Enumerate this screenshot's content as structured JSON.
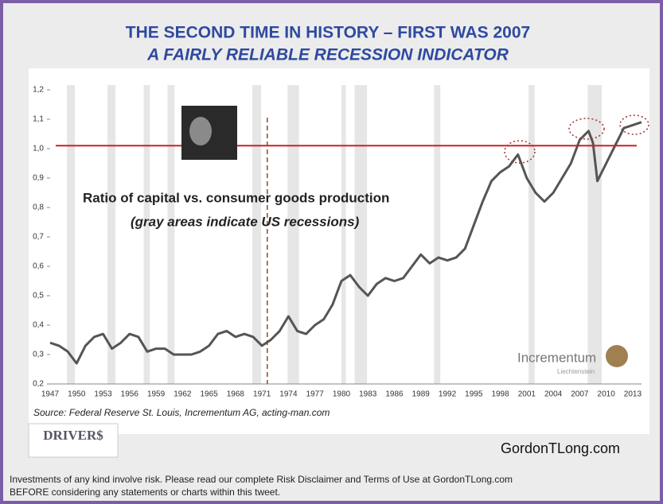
{
  "chart_data": {
    "type": "line",
    "title": "THE SECOND TIME IN HISTORY – FIRST WAS 2007",
    "subtitle": "A FAIRLY RELIABLE RECESSION INDICATOR",
    "annotation_line1": "Ratio of capital vs. consumer goods production",
    "annotation_line2": "(gray areas indicate US recessions)",
    "source": "Source: Federal Reserve St. Louis, Incrementum AG, acting-man.com",
    "logo_text": "Incrementum",
    "logo_subtext": "Liechtenstein",
    "color": "#555555",
    "x": [
      1947,
      1948,
      1949,
      1950,
      1951,
      1952,
      1953,
      1954,
      1955,
      1956,
      1957,
      1958,
      1959,
      1960,
      1961,
      1962,
      1963,
      1964,
      1965,
      1966,
      1967,
      1968,
      1969,
      1970,
      1971,
      1972,
      1973,
      1974,
      1975,
      1976,
      1977,
      1978,
      1979,
      1980,
      1981,
      1982,
      1983,
      1984,
      1985,
      1986,
      1987,
      1988,
      1989,
      1990,
      1991,
      1992,
      1993,
      1994,
      1995,
      1996,
      1997,
      1998,
      1999,
      2000,
      2001,
      2002,
      2003,
      2004,
      2005,
      2006,
      2007,
      2008,
      2008.5,
      2009,
      2010,
      2011,
      2012,
      2013,
      2014
    ],
    "values": [
      0.34,
      0.33,
      0.31,
      0.27,
      0.33,
      0.36,
      0.37,
      0.32,
      0.34,
      0.37,
      0.36,
      0.31,
      0.32,
      0.32,
      0.3,
      0.3,
      0.3,
      0.31,
      0.33,
      0.37,
      0.38,
      0.36,
      0.37,
      0.36,
      0.33,
      0.35,
      0.38,
      0.43,
      0.38,
      0.37,
      0.4,
      0.42,
      0.47,
      0.55,
      0.57,
      0.53,
      0.5,
      0.54,
      0.56,
      0.55,
      0.56,
      0.6,
      0.64,
      0.61,
      0.63,
      0.62,
      0.63,
      0.66,
      0.74,
      0.82,
      0.89,
      0.92,
      0.94,
      0.98,
      0.9,
      0.85,
      0.82,
      0.85,
      0.9,
      0.95,
      1.03,
      1.06,
      1.02,
      0.89,
      0.95,
      1.01,
      1.07,
      1.08,
      1.09
    ],
    "recessions": [
      [
        1948.9,
        1949.8
      ],
      [
        1953.5,
        1954.4
      ],
      [
        1957.6,
        1958.3
      ],
      [
        1960.3,
        1961.1
      ],
      [
        1969.9,
        1970.9
      ],
      [
        1973.9,
        1975.2
      ],
      [
        1980.0,
        1980.5
      ],
      [
        1981.5,
        1982.9
      ],
      [
        1990.5,
        1991.2
      ],
      [
        2001.2,
        2001.9
      ],
      [
        2007.9,
        2009.5
      ]
    ],
    "recession_color": "#e6e6e6",
    "reference_line": 1.01,
    "reference_color": "#cc2222",
    "marker_line": 1971.6,
    "marker_color": "#8b4a2b",
    "xlim": [
      1947,
      2014
    ],
    "ylim": [
      0.2,
      1.2
    ],
    "xticks": [
      1947,
      1950,
      1953,
      1956,
      1959,
      1962,
      1965,
      1968,
      1971,
      1974,
      1977,
      1980,
      1983,
      1986,
      1989,
      1992,
      1995,
      1998,
      2001,
      2004,
      2007,
      2010,
      2013
    ],
    "yticks": [
      {
        "value": 0.2,
        "label": "0,2"
      },
      {
        "value": 0.3,
        "label": "0,3"
      },
      {
        "value": 0.4,
        "label": "0,4"
      },
      {
        "value": 0.5,
        "label": "0,5"
      },
      {
        "value": 0.6,
        "label": "0,6"
      },
      {
        "value": 0.7,
        "label": "0,7"
      },
      {
        "value": 0.8,
        "label": "0,8"
      },
      {
        "value": 0.9,
        "label": "0,9"
      },
      {
        "value": 1.0,
        "label": "1,0"
      },
      {
        "value": 1.1,
        "label": "1,1"
      },
      {
        "value": 1.2,
        "label": "1,2"
      }
    ]
  },
  "branding": {
    "drivers_logo": "DRIVER$",
    "site": "GordonTLong.com"
  },
  "disclaimer": {
    "line1": "Investments of any kind involve risk. Please read our complete Risk Disclaimer and Terms of Use at GordonTLong.com",
    "line2": "BEFORE considering any statements or charts within this tweet."
  }
}
